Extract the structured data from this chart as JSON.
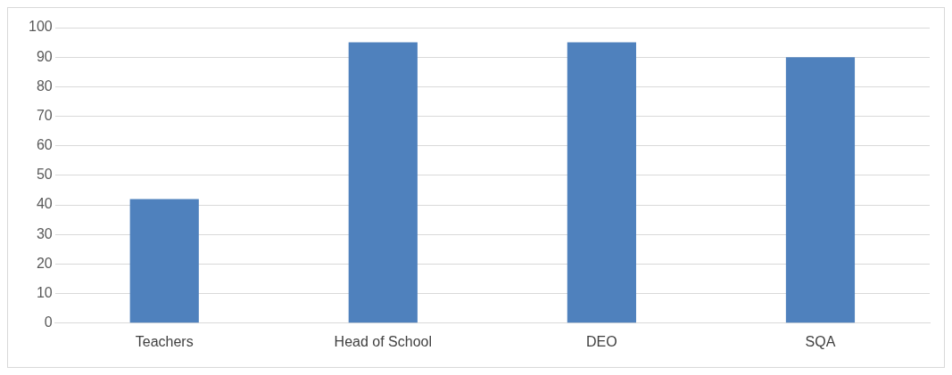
{
  "chart_data": {
    "type": "bar",
    "categories": [
      "Teachers",
      "Head of School",
      "DEO",
      "SQA"
    ],
    "values": [
      42,
      95,
      95,
      90
    ],
    "color": "#4f81bd",
    "ylim": [
      0,
      100
    ],
    "yticks": [
      0,
      10,
      20,
      30,
      40,
      50,
      60,
      70,
      80,
      90,
      100
    ],
    "grid": "y",
    "legend": false
  }
}
